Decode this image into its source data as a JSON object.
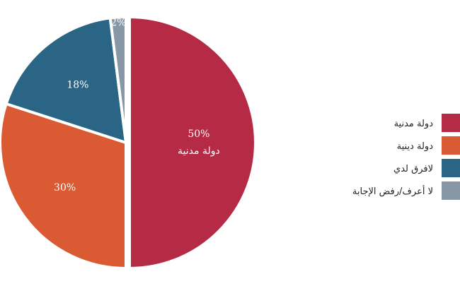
{
  "chart_data": {
    "type": "pie",
    "title": "",
    "slices": [
      {
        "label": "دولة مدنية",
        "value": 50,
        "value_label": "50%",
        "inner_label": "دولة مدنية",
        "color": "#B52A44"
      },
      {
        "label": "دولة دينية",
        "value": 30,
        "value_label": "30%",
        "color": "#DA5B33"
      },
      {
        "label": "لافرق لدي",
        "value": 18,
        "value_label": "18%",
        "color": "#2B6585"
      },
      {
        "label": "لا أعرف/رفض الإجابة",
        "value": 2,
        "value_label": "2%",
        "color": "#8797A5"
      }
    ],
    "start_angle_deg": 0,
    "direction": "clockwise",
    "exploded_slice": "دولة مدنية",
    "legend": {
      "position": "right",
      "items": [
        "دولة مدنية",
        "دولة دينية",
        "لافرق لدي",
        "لا أعرف/رفض الإجابة"
      ]
    }
  }
}
